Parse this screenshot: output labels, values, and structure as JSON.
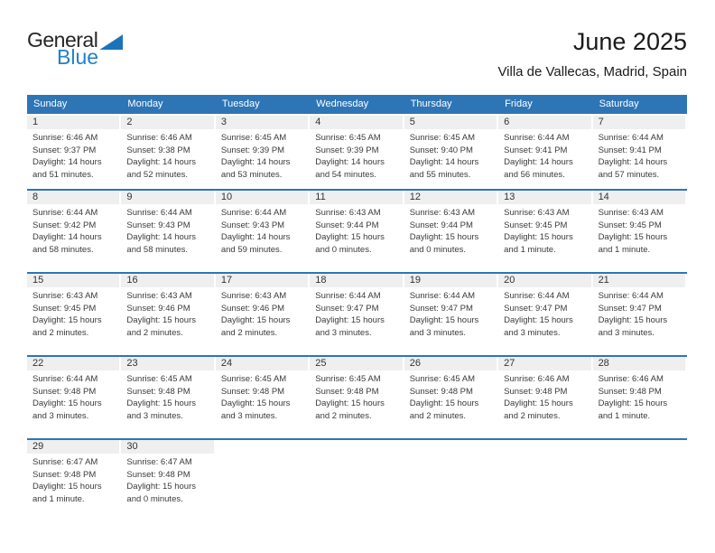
{
  "logo": {
    "part1": "General",
    "part2": "Blue"
  },
  "title": "June 2025",
  "subtitle": "Villa de Vallecas, Madrid, Spain",
  "weekdays": [
    "Sunday",
    "Monday",
    "Tuesday",
    "Wednesday",
    "Thursday",
    "Friday",
    "Saturday"
  ],
  "colors": {
    "header_blue": "#2E75B6",
    "divider_blue": "#2E75B6",
    "day_band_gray": "#EFEFEF",
    "logo_blue": "#1E82CA",
    "logo_triangle_blue": "#1B74B8",
    "logo_dark": "#262626"
  },
  "weeks": [
    [
      {
        "day": "1",
        "sunrise": "Sunrise: 6:46 AM",
        "sunset": "Sunset: 9:37 PM",
        "daylight": "Daylight: 14 hours and 51 minutes."
      },
      {
        "day": "2",
        "sunrise": "Sunrise: 6:46 AM",
        "sunset": "Sunset: 9:38 PM",
        "daylight": "Daylight: 14 hours and 52 minutes."
      },
      {
        "day": "3",
        "sunrise": "Sunrise: 6:45 AM",
        "sunset": "Sunset: 9:39 PM",
        "daylight": "Daylight: 14 hours and 53 minutes."
      },
      {
        "day": "4",
        "sunrise": "Sunrise: 6:45 AM",
        "sunset": "Sunset: 9:39 PM",
        "daylight": "Daylight: 14 hours and 54 minutes."
      },
      {
        "day": "5",
        "sunrise": "Sunrise: 6:45 AM",
        "sunset": "Sunset: 9:40 PM",
        "daylight": "Daylight: 14 hours and 55 minutes."
      },
      {
        "day": "6",
        "sunrise": "Sunrise: 6:44 AM",
        "sunset": "Sunset: 9:41 PM",
        "daylight": "Daylight: 14 hours and 56 minutes."
      },
      {
        "day": "7",
        "sunrise": "Sunrise: 6:44 AM",
        "sunset": "Sunset: 9:41 PM",
        "daylight": "Daylight: 14 hours and 57 minutes."
      }
    ],
    [
      {
        "day": "8",
        "sunrise": "Sunrise: 6:44 AM",
        "sunset": "Sunset: 9:42 PM",
        "daylight": "Daylight: 14 hours and 58 minutes."
      },
      {
        "day": "9",
        "sunrise": "Sunrise: 6:44 AM",
        "sunset": "Sunset: 9:43 PM",
        "daylight": "Daylight: 14 hours and 58 minutes."
      },
      {
        "day": "10",
        "sunrise": "Sunrise: 6:44 AM",
        "sunset": "Sunset: 9:43 PM",
        "daylight": "Daylight: 14 hours and 59 minutes."
      },
      {
        "day": "11",
        "sunrise": "Sunrise: 6:43 AM",
        "sunset": "Sunset: 9:44 PM",
        "daylight": "Daylight: 15 hours and 0 minutes."
      },
      {
        "day": "12",
        "sunrise": "Sunrise: 6:43 AM",
        "sunset": "Sunset: 9:44 PM",
        "daylight": "Daylight: 15 hours and 0 minutes."
      },
      {
        "day": "13",
        "sunrise": "Sunrise: 6:43 AM",
        "sunset": "Sunset: 9:45 PM",
        "daylight": "Daylight: 15 hours and 1 minute."
      },
      {
        "day": "14",
        "sunrise": "Sunrise: 6:43 AM",
        "sunset": "Sunset: 9:45 PM",
        "daylight": "Daylight: 15 hours and 1 minute."
      }
    ],
    [
      {
        "day": "15",
        "sunrise": "Sunrise: 6:43 AM",
        "sunset": "Sunset: 9:45 PM",
        "daylight": "Daylight: 15 hours and 2 minutes."
      },
      {
        "day": "16",
        "sunrise": "Sunrise: 6:43 AM",
        "sunset": "Sunset: 9:46 PM",
        "daylight": "Daylight: 15 hours and 2 minutes."
      },
      {
        "day": "17",
        "sunrise": "Sunrise: 6:43 AM",
        "sunset": "Sunset: 9:46 PM",
        "daylight": "Daylight: 15 hours and 2 minutes."
      },
      {
        "day": "18",
        "sunrise": "Sunrise: 6:44 AM",
        "sunset": "Sunset: 9:47 PM",
        "daylight": "Daylight: 15 hours and 3 minutes."
      },
      {
        "day": "19",
        "sunrise": "Sunrise: 6:44 AM",
        "sunset": "Sunset: 9:47 PM",
        "daylight": "Daylight: 15 hours and 3 minutes."
      },
      {
        "day": "20",
        "sunrise": "Sunrise: 6:44 AM",
        "sunset": "Sunset: 9:47 PM",
        "daylight": "Daylight: 15 hours and 3 minutes."
      },
      {
        "day": "21",
        "sunrise": "Sunrise: 6:44 AM",
        "sunset": "Sunset: 9:47 PM",
        "daylight": "Daylight: 15 hours and 3 minutes."
      }
    ],
    [
      {
        "day": "22",
        "sunrise": "Sunrise: 6:44 AM",
        "sunset": "Sunset: 9:48 PM",
        "daylight": "Daylight: 15 hours and 3 minutes."
      },
      {
        "day": "23",
        "sunrise": "Sunrise: 6:45 AM",
        "sunset": "Sunset: 9:48 PM",
        "daylight": "Daylight: 15 hours and 3 minutes."
      },
      {
        "day": "24",
        "sunrise": "Sunrise: 6:45 AM",
        "sunset": "Sunset: 9:48 PM",
        "daylight": "Daylight: 15 hours and 3 minutes."
      },
      {
        "day": "25",
        "sunrise": "Sunrise: 6:45 AM",
        "sunset": "Sunset: 9:48 PM",
        "daylight": "Daylight: 15 hours and 2 minutes."
      },
      {
        "day": "26",
        "sunrise": "Sunrise: 6:45 AM",
        "sunset": "Sunset: 9:48 PM",
        "daylight": "Daylight: 15 hours and 2 minutes."
      },
      {
        "day": "27",
        "sunrise": "Sunrise: 6:46 AM",
        "sunset": "Sunset: 9:48 PM",
        "daylight": "Daylight: 15 hours and 2 minutes."
      },
      {
        "day": "28",
        "sunrise": "Sunrise: 6:46 AM",
        "sunset": "Sunset: 9:48 PM",
        "daylight": "Daylight: 15 hours and 1 minute."
      }
    ],
    [
      {
        "day": "29",
        "sunrise": "Sunrise: 6:47 AM",
        "sunset": "Sunset: 9:48 PM",
        "daylight": "Daylight: 15 hours and 1 minute."
      },
      {
        "day": "30",
        "sunrise": "Sunrise: 6:47 AM",
        "sunset": "Sunset: 9:48 PM",
        "daylight": "Daylight: 15 hours and 0 minutes."
      },
      null,
      null,
      null,
      null,
      null
    ]
  ]
}
